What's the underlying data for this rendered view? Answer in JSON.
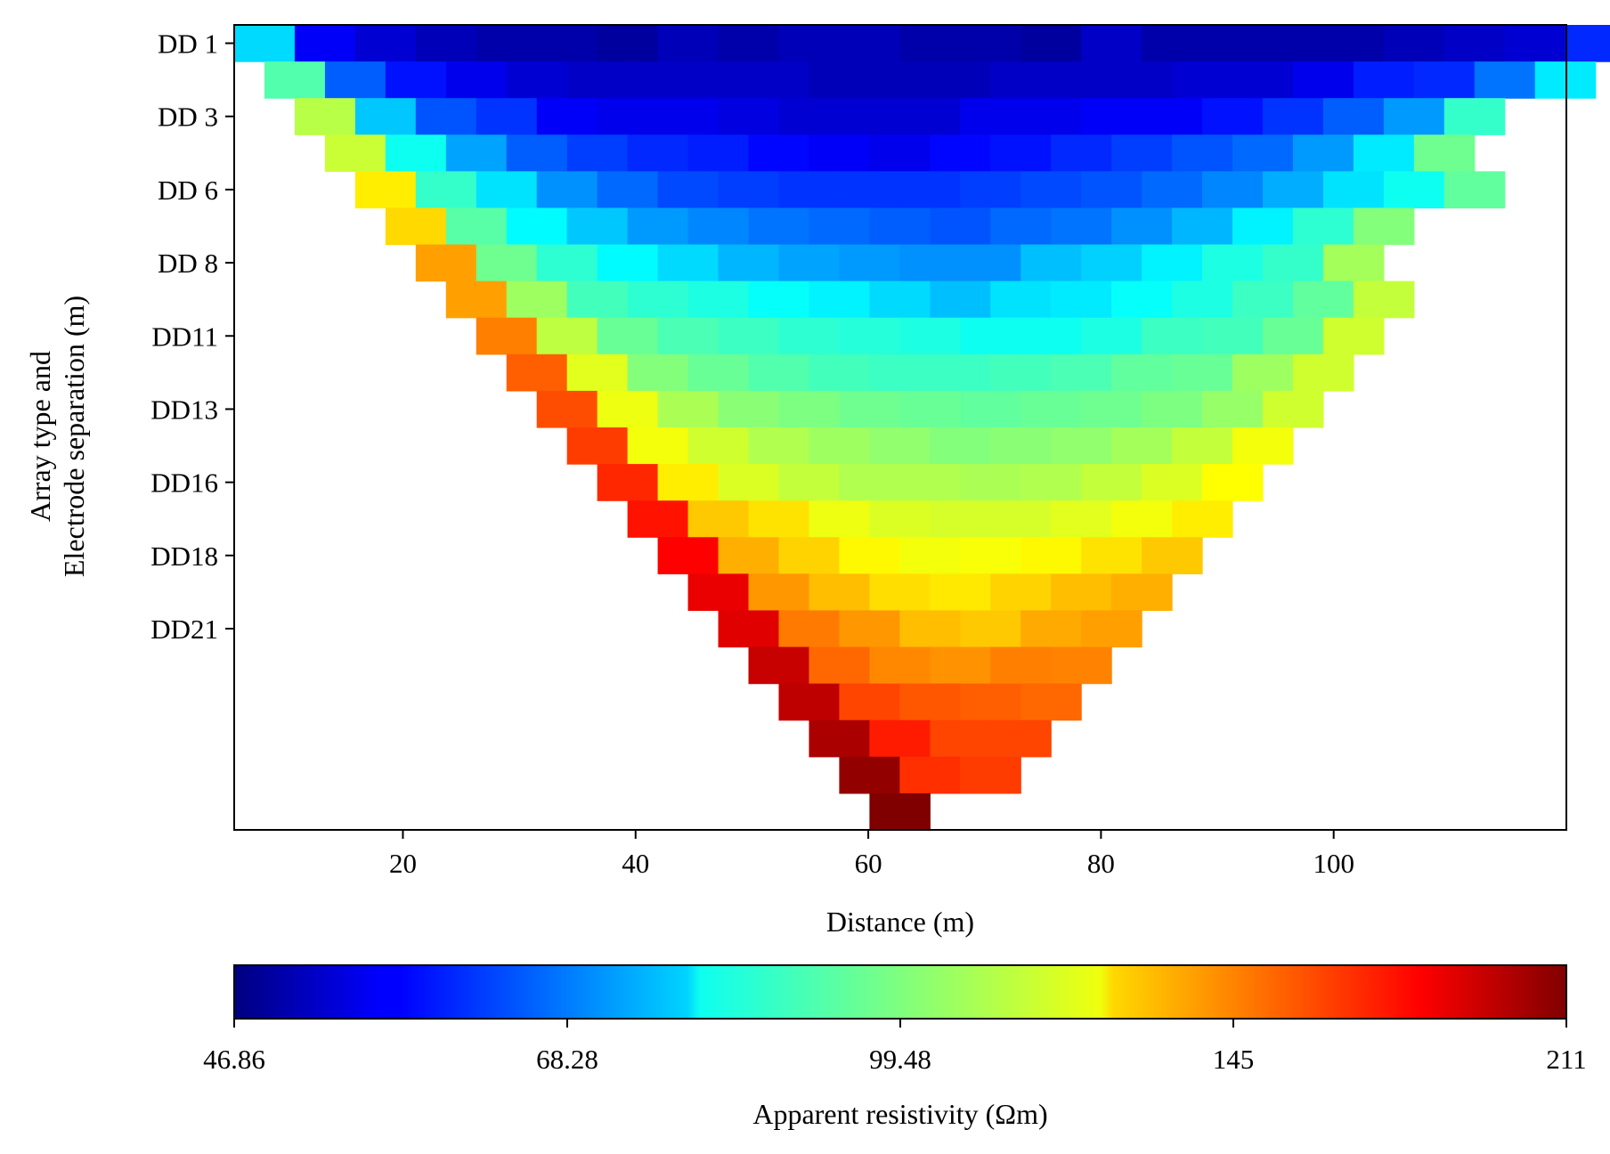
{
  "chart_data": {
    "type": "heatmap",
    "title": "",
    "xlabel": "Distance (m)",
    "ylabel_lines": [
      "Array type and",
      "Electrode separation (m)"
    ],
    "colorbar_label": "Apparent resistivity (Ωm)",
    "colormap": "jet",
    "color_scale": "log",
    "xlim": [
      5.5,
      120
    ],
    "x_ticks": [
      20,
      40,
      60,
      80,
      100
    ],
    "y_tick_labels": [
      {
        "row": 1,
        "label": "DD 1"
      },
      {
        "row": 3,
        "label": "DD 3"
      },
      {
        "row": 5,
        "label": "DD 6"
      },
      {
        "row": 7,
        "label": "DD 8"
      },
      {
        "row": 9,
        "label": "DD11"
      },
      {
        "row": 11,
        "label": "DD13"
      },
      {
        "row": 13,
        "label": "DD16"
      },
      {
        "row": 15,
        "label": "DD18"
      },
      {
        "row": 17,
        "label": "DD21"
      }
    ],
    "colorbar_ticks": [
      "46.86",
      "68.28",
      "99.48",
      "145",
      "211"
    ],
    "vmin": 46.86,
    "vmax": 211,
    "cell_width_m": 5.2,
    "rows": [
      {
        "x_start": 5.5,
        "values": [
          78,
          56,
          53,
          51,
          50,
          50,
          49,
          51,
          50,
          51,
          51,
          50,
          50,
          49,
          52,
          50,
          50,
          50,
          50,
          51,
          52,
          53,
          60,
          70
        ]
      },
      {
        "x_start": 8.1,
        "values": [
          93,
          65,
          58,
          55,
          53,
          52,
          52,
          52,
          52,
          51,
          51,
          51,
          52,
          52,
          52,
          53,
          53,
          55,
          59,
          60,
          67,
          80
        ]
      },
      {
        "x_start": 10.7,
        "values": [
          108,
          76,
          64,
          61,
          56,
          55,
          55,
          54,
          53,
          53,
          53,
          55,
          55,
          56,
          56,
          58,
          61,
          65,
          71,
          89
        ]
      },
      {
        "x_start": 13.3,
        "values": [
          111,
          84,
          72,
          65,
          62,
          60,
          59,
          57,
          56,
          55,
          57,
          58,
          60,
          62,
          64,
          66,
          71,
          80,
          97
        ]
      },
      {
        "x_start": 15.9,
        "values": [
          123,
          89,
          79,
          70,
          66,
          63,
          62,
          61,
          61,
          61,
          62,
          63,
          64,
          66,
          69,
          73,
          79,
          84,
          95
        ]
      },
      {
        "x_start": 18.5,
        "values": [
          127,
          94,
          82,
          76,
          71,
          69,
          67,
          66,
          65,
          64,
          66,
          67,
          70,
          74,
          81,
          88,
          100
        ]
      },
      {
        "x_start": 21.1,
        "values": [
          138,
          97,
          88,
          82,
          78,
          74,
          72,
          71,
          70,
          70,
          75,
          77,
          81,
          86,
          89,
          105
        ]
      },
      {
        "x_start": 23.7,
        "values": [
          138,
          104,
          91,
          88,
          86,
          83,
          81,
          78,
          75,
          79,
          80,
          83,
          86,
          90,
          95,
          110
        ]
      },
      {
        "x_start": 26.3,
        "values": [
          145,
          109,
          96,
          92,
          90,
          88,
          87,
          86,
          84,
          84,
          86,
          90,
          91,
          96,
          112
        ]
      },
      {
        "x_start": 28.9,
        "values": [
          152,
          115,
          100,
          96,
          93,
          91,
          90,
          90,
          91,
          92,
          95,
          96,
          104,
          112
        ]
      },
      {
        "x_start": 31.5,
        "values": [
          156,
          117,
          106,
          101,
          99,
          97,
          96,
          95,
          96,
          97,
          99,
          103,
          112
        ]
      },
      {
        "x_start": 34.1,
        "values": [
          160,
          118,
          112,
          107,
          104,
          102,
          100,
          101,
          102,
          105,
          110,
          118
        ]
      },
      {
        "x_start": 36.7,
        "values": [
          165,
          123,
          114,
          110,
          107,
          107,
          106,
          107,
          110,
          114,
          120
        ]
      },
      {
        "x_start": 39.3,
        "values": [
          170,
          130,
          125,
          117,
          114,
          113,
          113,
          115,
          118,
          123
        ]
      },
      {
        "x_start": 41.9,
        "values": [
          175,
          135,
          128,
          121,
          118,
          119,
          121,
          125,
          130
        ]
      },
      {
        "x_start": 44.5,
        "values": [
          180,
          140,
          132,
          126,
          124,
          128,
          132,
          135
        ]
      },
      {
        "x_start": 47.1,
        "values": [
          183,
          146,
          140,
          132,
          130,
          136,
          138
        ]
      },
      {
        "x_start": 49.7,
        "values": [
          190,
          150,
          143,
          141,
          145,
          144
        ]
      },
      {
        "x_start": 52.3,
        "values": [
          192,
          158,
          154,
          152,
          150
        ]
      },
      {
        "x_start": 54.9,
        "values": [
          198,
          168,
          158,
          158
        ]
      },
      {
        "x_start": 57.5,
        "values": [
          205,
          163,
          160
        ]
      },
      {
        "x_start": 60.1,
        "values": [
          211
        ]
      }
    ]
  }
}
